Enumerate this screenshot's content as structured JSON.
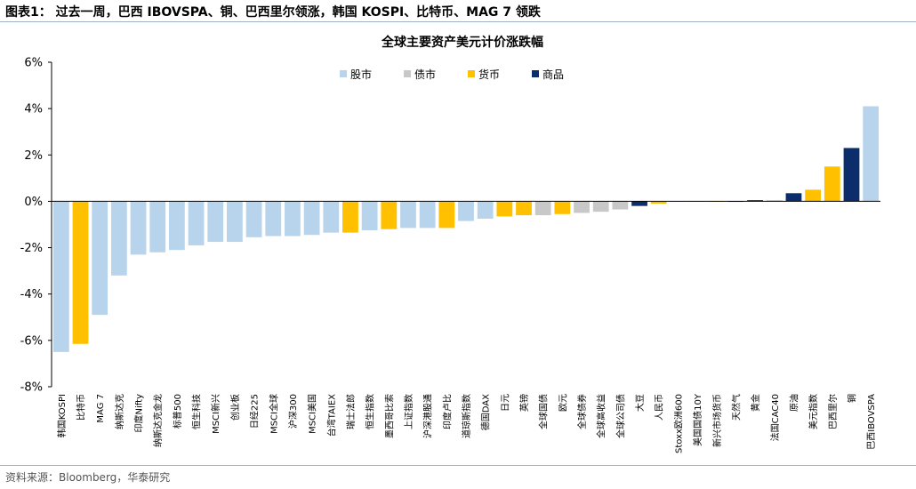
{
  "figure_title": "图表1：  过去一周，巴西 IBOVSPA、铜、巴西里尔领涨，韩国 KOSPI、比特币、MAG 7 领跌",
  "source": "资料来源：Bloomberg，华泰研究",
  "colors": {
    "equity": "#b8d4ec",
    "bond": "#c8c8c8",
    "currency": "#ffc000",
    "commodity": "#0b2d6b",
    "rule": "#9fb2c8"
  },
  "chart_data": {
    "type": "bar",
    "title": "全球主要资产美元计价涨跌幅",
    "legend_position": "top",
    "legend": [
      {
        "key": "equity",
        "label": "股市"
      },
      {
        "key": "bond",
        "label": "债市"
      },
      {
        "key": "currency",
        "label": "货币"
      },
      {
        "key": "commodity",
        "label": "商品"
      }
    ],
    "ylim": [
      -8,
      6
    ],
    "yticks": [
      -8,
      -6,
      -4,
      -2,
      0,
      2,
      4,
      6
    ],
    "ytick_format": "percent",
    "grid": false,
    "categories": [
      "韩国KOSPI",
      "比特币",
      "MAG 7",
      "纳斯达克",
      "印度Nifty",
      "纳斯达克金龙",
      "标普500",
      "恒生科技",
      "MSCI新兴",
      "创业板",
      "日经225",
      "MSCI全球",
      "沪深300",
      "MSCI美国",
      "台湾TAIEX",
      "瑞士法郎",
      "恒生指数",
      "墨西哥比索",
      "上证指数",
      "沪深港股通",
      "印度卢比",
      "道琼斯指数",
      "德国DAX",
      "日元",
      "英镑",
      "全球国债",
      "欧元",
      "全球债券",
      "全球高收益",
      "全球公司债",
      "大豆",
      "人民币",
      "Stoxx欧洲600",
      "美国国债10Y",
      "新兴市场货币",
      "天然气",
      "黄金",
      "法国CAC40",
      "原油",
      "美元指数",
      "巴西里尔",
      "铜",
      "巴西IBOVSPA"
    ],
    "values": [
      -6.5,
      -6.15,
      -4.9,
      -3.2,
      -2.3,
      -2.2,
      -2.1,
      -1.9,
      -1.75,
      -1.75,
      -1.55,
      -1.5,
      -1.5,
      -1.45,
      -1.35,
      -1.35,
      -1.25,
      -1.2,
      -1.15,
      -1.15,
      -1.15,
      -0.85,
      -0.75,
      -0.65,
      -0.6,
      -0.6,
      -0.55,
      -0.5,
      -0.45,
      -0.35,
      -0.2,
      -0.1,
      -0.02,
      -0.02,
      -0.02,
      0.0,
      0.05,
      0.05,
      0.35,
      0.5,
      1.5,
      2.3,
      4.1
    ],
    "types": [
      "equity",
      "currency",
      "equity",
      "equity",
      "equity",
      "equity",
      "equity",
      "equity",
      "equity",
      "equity",
      "equity",
      "equity",
      "equity",
      "equity",
      "equity",
      "currency",
      "equity",
      "currency",
      "equity",
      "equity",
      "currency",
      "equity",
      "equity",
      "currency",
      "currency",
      "bond",
      "currency",
      "bond",
      "bond",
      "bond",
      "commodity",
      "currency",
      "equity",
      "bond",
      "currency",
      "commodity",
      "commodity",
      "equity",
      "commodity",
      "currency",
      "currency",
      "commodity",
      "equity"
    ]
  }
}
